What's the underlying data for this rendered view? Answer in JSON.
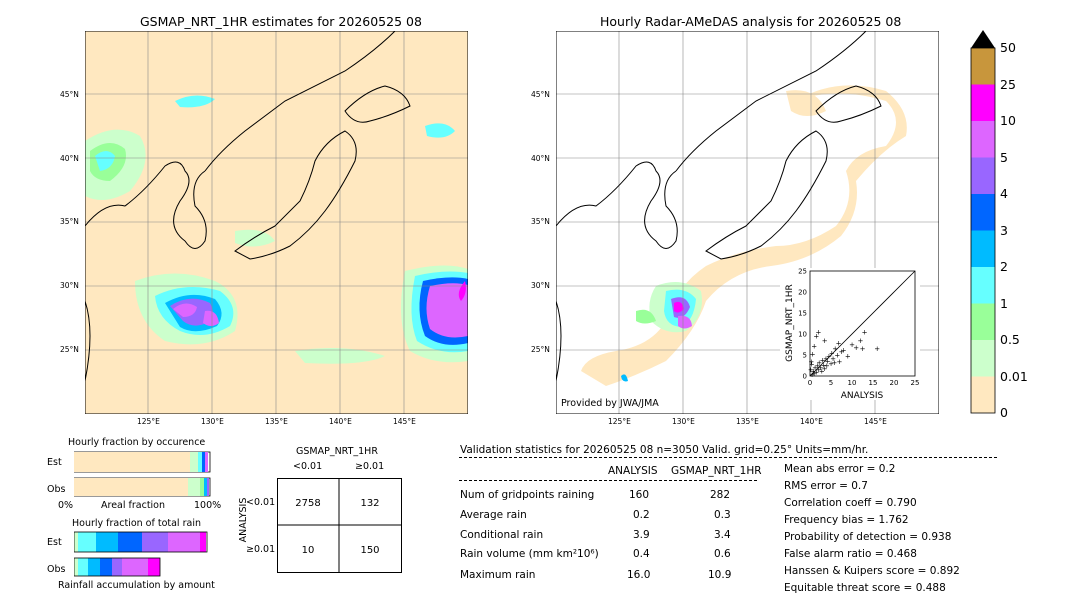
{
  "left_map": {
    "title": "GSMAP_NRT_1HR estimates for 20260525 08",
    "lon_ticks": [
      "125°E",
      "130°E",
      "135°E",
      "140°E",
      "145°E"
    ],
    "lat_ticks": [
      "45°N",
      "40°N",
      "35°N",
      "30°N",
      "25°N"
    ]
  },
  "right_map": {
    "title": "Hourly Radar-AMeDAS analysis for 20260525 08",
    "lon_ticks": [
      "125°E",
      "130°E",
      "135°E",
      "140°E",
      "145°E"
    ],
    "lat_ticks": [
      "45°N",
      "40°N",
      "35°N",
      "30°N",
      "25°N"
    ],
    "credit": "Provided by JWA/JMA"
  },
  "colorbar": {
    "labels": [
      "50",
      "25",
      "10",
      "5",
      "4",
      "3",
      "2",
      "1",
      "0.5",
      "0.01",
      "0"
    ],
    "colors": [
      "#c8963c",
      "#ff00ff",
      "#dd66ff",
      "#9966ff",
      "#0066ff",
      "#00bbff",
      "#66ffff",
      "#99ff99",
      "#ccffcc",
      "#ffe8c0"
    ]
  },
  "fraction_occurrence": {
    "title": "Hourly fraction by occurence",
    "row_est": "Est",
    "row_obs": "Obs",
    "axis_left": "0%",
    "axis_mid": "Areal fraction",
    "axis_right": "100%"
  },
  "fraction_total": {
    "title": "Hourly fraction of total rain",
    "row_est": "Est",
    "row_obs": "Obs",
    "footer": "Rainfall accumulation by amount"
  },
  "contingency": {
    "header": "GSMAP_NRT_1HR",
    "col_lt": "<0.01",
    "col_ge": "≥0.01",
    "side_label": "ANALYSIS",
    "row_lt": "<0.01",
    "row_ge": "≥0.01",
    "cells": [
      "2758",
      "132",
      "10",
      "150"
    ]
  },
  "validation": {
    "header": "Validation statistics for 20260525 08  n=3050 Valid. grid=0.25° Units=mm/hr.",
    "col_analysis": "ANALYSIS",
    "col_gsmap": "GSMAP_NRT_1HR",
    "rows": [
      {
        "label": "Num of gridpoints raining",
        "analysis": "160",
        "gsmap": "282"
      },
      {
        "label": "Average rain",
        "analysis": "0.2",
        "gsmap": "0.3"
      },
      {
        "label": "Conditional rain",
        "analysis": "3.9",
        "gsmap": "3.4"
      },
      {
        "label": "Rain volume (mm km²10⁶)",
        "analysis": "0.4",
        "gsmap": "0.6"
      },
      {
        "label": "Maximum rain",
        "analysis": "16.0",
        "gsmap": "10.9"
      }
    ],
    "scores": [
      "Mean abs error =    0.2",
      "RMS error =    0.7",
      "Correlation coeff =  0.790",
      "Frequency bias =  1.762",
      "Probability of detection =  0.938",
      "False alarm ratio =  0.468",
      "Hanssen & Kuipers score =  0.892",
      "Equitable threat score =  0.488"
    ]
  },
  "chart_data": {
    "type": "scatter",
    "xlabel": "ANALYSIS",
    "ylabel": "GSMAP_NRT_1HR",
    "xlim": [
      0,
      25
    ],
    "ylim": [
      0,
      25
    ],
    "ticks": [
      "0",
      "5",
      "10",
      "15",
      "20",
      "25"
    ],
    "points": [
      [
        0.5,
        0.4
      ],
      [
        0.8,
        1.2
      ],
      [
        1.0,
        0.6
      ],
      [
        1.2,
        2.0
      ],
      [
        1.5,
        1.0
      ],
      [
        1.8,
        2.5
      ],
      [
        2.0,
        1.5
      ],
      [
        2.2,
        3.2
      ],
      [
        2.5,
        2.0
      ],
      [
        2.8,
        1.2
      ],
      [
        3.0,
        3.8
      ],
      [
        3.2,
        2.6
      ],
      [
        3.5,
        1.8
      ],
      [
        3.8,
        4.2
      ],
      [
        4.0,
        2.5
      ],
      [
        4.2,
        3.6
      ],
      [
        4.5,
        4.8
      ],
      [
        5.0,
        3.0
      ],
      [
        5.2,
        5.5
      ],
      [
        5.5,
        4.2
      ],
      [
        6.0,
        6.5
      ],
      [
        6.5,
        5.0
      ],
      [
        7.0,
        3.5
      ],
      [
        7.5,
        5.8
      ],
      [
        8.0,
        6.2
      ],
      [
        9.0,
        4.8
      ],
      [
        10.0,
        7.5
      ],
      [
        11.0,
        6.8
      ],
      [
        12.0,
        8.5
      ],
      [
        12.5,
        6.5
      ],
      [
        13.0,
        10.5
      ],
      [
        16.0,
        6.5
      ],
      [
        1.5,
        9.5
      ],
      [
        2.0,
        10.5
      ],
      [
        0.3,
        3.5
      ],
      [
        0.6,
        5.2
      ],
      [
        1.0,
        7.2
      ],
      [
        3.5,
        8.5
      ],
      [
        0.2,
        1.5
      ],
      [
        0.4,
        2.8
      ],
      [
        5.8,
        3.2
      ],
      [
        6.8,
        7.8
      ]
    ]
  }
}
